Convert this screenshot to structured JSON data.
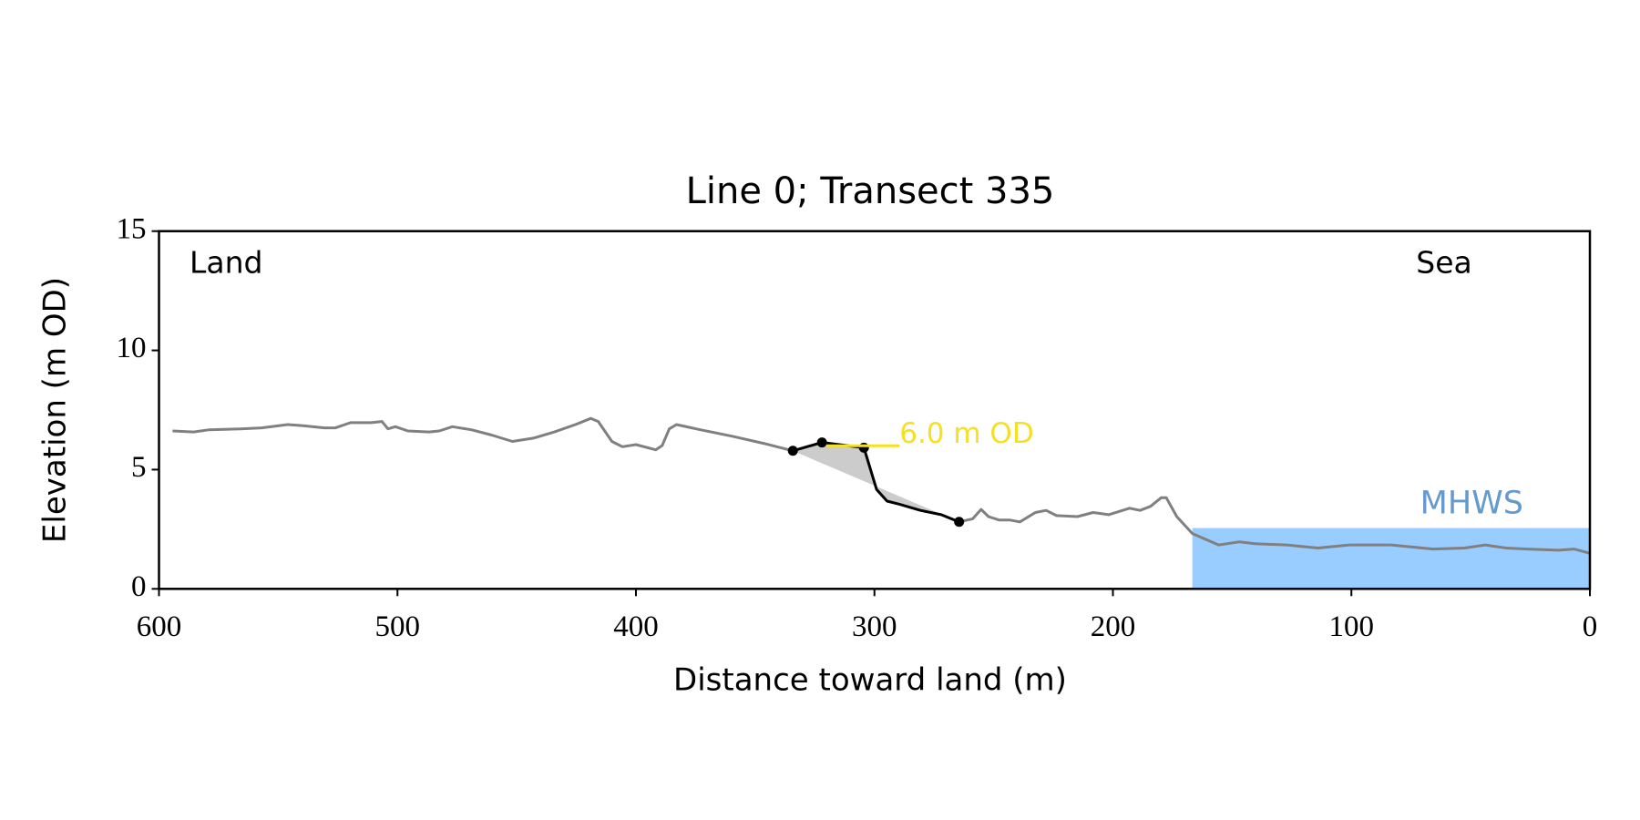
{
  "chart_data": {
    "type": "line",
    "title": "Line 0; Transect 335",
    "xlabel": "Distance toward land (m)",
    "ylabel": "Elevation (m OD)",
    "xlim": [
      600,
      0
    ],
    "xticks": [
      600,
      500,
      400,
      300,
      200,
      100,
      0
    ],
    "ylim": [
      0,
      15
    ],
    "yticks": [
      0,
      5,
      10,
      15
    ],
    "grid": false,
    "annotations": {
      "left": "Land",
      "right": "Sea"
    },
    "series": [
      {
        "color": "#808080",
        "x": [
          594.3,
          585.5,
          579,
          565.8,
          557,
          546,
          539.5,
          530.7,
          526,
          519.7,
          511,
          506.5,
          504,
          500.9,
          495.6,
          486.8,
          482.5,
          477,
          469,
          460.5,
          451.8,
          443,
          434.2,
          425.4,
          418.9,
          415.8,
          410.1,
          405.7,
          400,
          391.7,
          389,
          386,
          383,
          373,
          359.6,
          346.5,
          334.2,
          null,
          264.5,
          258.8,
          255.3,
          252.2,
          247.8,
          243.4,
          239,
          232.5,
          228,
          223.7,
          214.9,
          208.3,
          201.8,
          193,
          188.6,
          184.2,
          179.8,
          177.6,
          173.2,
          166.7,
          155.7,
          146.9,
          140.4,
          127.2,
          114,
          100.9,
          83.3,
          65.8,
          52.6,
          43.9,
          35.1,
          26.3,
          13.2,
          6.6,
          0
        ],
        "values": [
          6.62,
          6.58,
          6.67,
          6.71,
          6.75,
          6.89,
          6.84,
          6.75,
          6.75,
          6.97,
          6.97,
          7.02,
          6.71,
          6.8,
          6.62,
          6.58,
          6.62,
          6.8,
          6.67,
          6.45,
          6.18,
          6.32,
          6.58,
          6.89,
          7.15,
          7.02,
          6.18,
          5.96,
          6.05,
          5.83,
          6.01,
          6.71,
          6.89,
          6.67,
          6.4,
          6.1,
          5.79,
          null,
          2.81,
          2.94,
          3.33,
          3.03,
          2.89,
          2.89,
          2.81,
          3.2,
          3.29,
          3.07,
          3.03,
          3.2,
          3.11,
          3.38,
          3.29,
          3.46,
          3.82,
          3.82,
          3.03,
          2.32,
          1.84,
          1.97,
          1.89,
          1.84,
          1.71,
          1.84,
          1.84,
          1.67,
          1.71,
          1.84,
          1.71,
          1.67,
          1.62,
          1.67,
          1.49
        ]
      },
      {
        "color": "#000000",
        "fill": "#cccccc",
        "x": [
          334.2,
          322,
          304.4,
          299.1,
          294.7,
          289.5,
          280.7,
          272,
          264.5
        ],
        "values": [
          5.79,
          6.14,
          5.92,
          4.17,
          3.68,
          3.55,
          3.29,
          3.11,
          2.81
        ]
      }
    ],
    "points": {
      "color": "#000000",
      "x": [
        334.2,
        322,
        304.4,
        264.5
      ],
      "values": [
        5.79,
        6.14,
        5.92,
        2.81
      ]
    },
    "level_line": {
      "label": "6.0 m OD",
      "y": 6.0,
      "x": [
        320.2,
        289.5
      ],
      "color": "#f5e024"
    },
    "mhws": {
      "label": "MHWS",
      "y": 2.55,
      "x": [
        166.7,
        0
      ],
      "color": "#99ccff",
      "label_color": "#6699cc"
    }
  }
}
